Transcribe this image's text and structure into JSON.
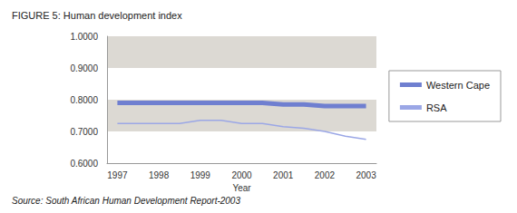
{
  "chart_data": {
    "type": "line",
    "title": "FIGURE 5: Human development index",
    "source": "Source: South African Human Development Report-2003",
    "x_label": "Year",
    "categories": [
      "1997",
      null,
      "1998",
      null,
      "1999",
      null,
      "2000",
      null,
      "2001",
      null,
      "2002",
      null,
      "2003"
    ],
    "series": [
      {
        "name": "Western Cape",
        "color": "#6f7fd0",
        "line_style": "solid",
        "values": [
          0.79,
          0.79,
          0.79,
          0.79,
          0.79,
          0.79,
          0.79,
          0.79,
          0.785,
          0.785,
          0.78,
          0.78,
          0.78
        ]
      },
      {
        "name": "RSA",
        "color": "#9ba7e6",
        "line_style": "solid",
        "values": [
          0.725,
          0.725,
          0.725,
          0.725,
          0.735,
          0.735,
          0.725,
          0.725,
          0.715,
          0.71,
          0.7,
          0.685,
          0.675
        ]
      }
    ],
    "ylim": [
      0.6,
      1.0
    ],
    "yticks": [
      {
        "value": 0.6,
        "label": "0.6000"
      },
      {
        "value": 0.7,
        "label": "0.7000"
      },
      {
        "value": 0.8,
        "label": "0.8000"
      },
      {
        "value": 0.9,
        "label": "0.9000"
      },
      {
        "value": 1.0,
        "label": "1.0000"
      }
    ],
    "grid": true,
    "legend": "right"
  }
}
